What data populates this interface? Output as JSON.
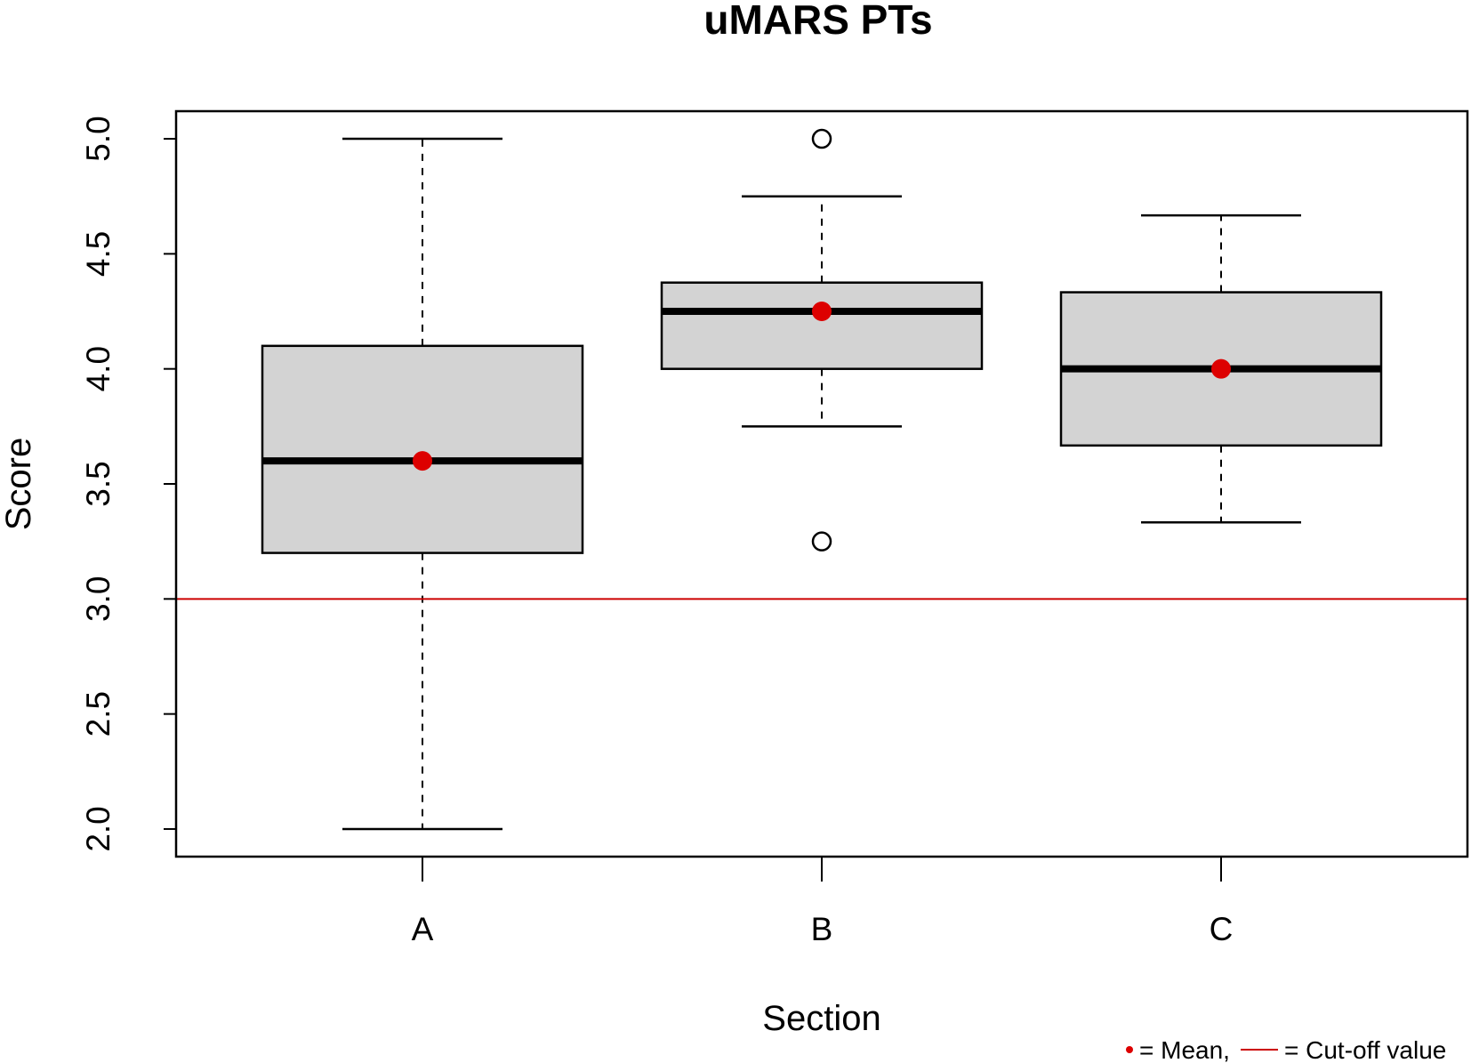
{
  "chart_data": {
    "type": "boxplot",
    "title": "uMARS PTs",
    "xlabel": "Section",
    "ylabel": "Score",
    "ylim": [
      1.88,
      5.12
    ],
    "yticks": [
      "2.0",
      "2.5",
      "3.0",
      "3.5",
      "4.0",
      "4.5",
      "5.0"
    ],
    "categories": [
      "A",
      "B",
      "C"
    ],
    "boxes": [
      {
        "name": "A",
        "whisker_low": 2.0,
        "q1": 3.2,
        "median": 3.6,
        "q3": 4.1,
        "whisker_high": 5.0,
        "mean": 3.6,
        "outliers": []
      },
      {
        "name": "B",
        "whisker_low": 3.75,
        "q1": 4.0,
        "median": 4.25,
        "q3": 4.375,
        "whisker_high": 4.75,
        "mean": 4.25,
        "outliers": [
          3.25,
          5.0
        ]
      },
      {
        "name": "C",
        "whisker_low": 3.333,
        "q1": 3.667,
        "median": 4.0,
        "q3": 4.333,
        "whisker_high": 4.667,
        "mean": 4.0,
        "outliers": []
      }
    ],
    "cutoff": 3.0,
    "legend": {
      "mean_label": "= Mean,",
      "cutoff_label": "= Cut-off value"
    },
    "colors": {
      "box_fill": "#d3d3d3",
      "mean": "#dd0000",
      "cutoff": "#cc0000",
      "ink": "#000000"
    }
  }
}
